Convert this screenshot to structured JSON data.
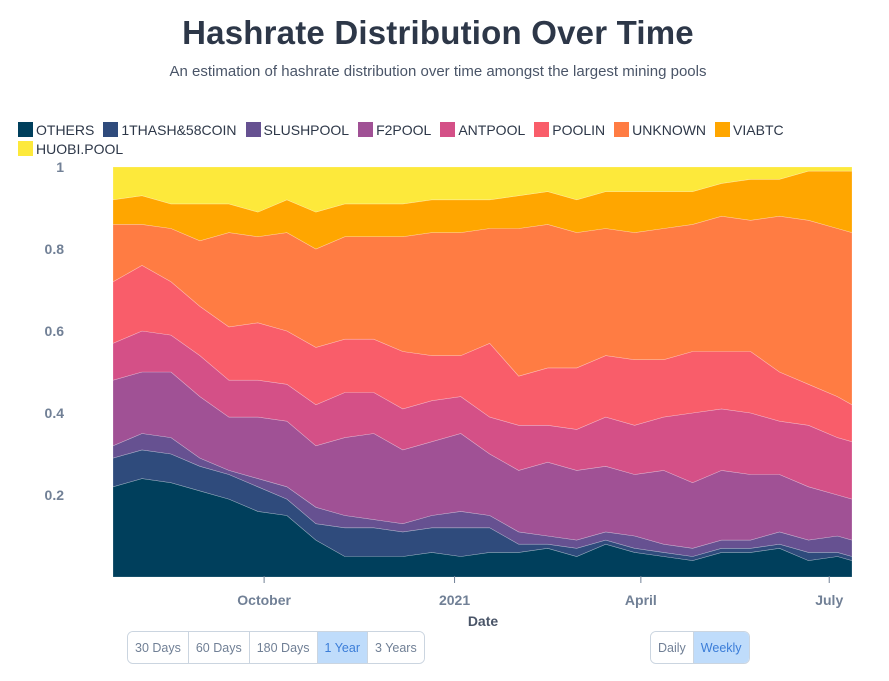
{
  "title": "Hashrate Distribution Over Time",
  "subtitle": "An estimation of hashrate distribution over time amongst the largest mining pools",
  "range_buttons": [
    {
      "label": "30 Days",
      "active": false
    },
    {
      "label": "60 Days",
      "active": false
    },
    {
      "label": "180 Days",
      "active": false
    },
    {
      "label": "1 Year",
      "active": true
    },
    {
      "label": "3 Years",
      "active": false
    }
  ],
  "interval_buttons": [
    {
      "label": "Daily",
      "active": false
    },
    {
      "label": "Weekly",
      "active": true
    }
  ],
  "chart_data": {
    "type": "area",
    "stacked": true,
    "title": "Hashrate Distribution Over Time",
    "subtitle": "An estimation of hashrate distribution over time amongst the largest mining pools",
    "xlabel": "Date",
    "ylabel": "",
    "ylim": [
      0,
      1
    ],
    "xlim": [
      "2020-07-20",
      "2021-07-12"
    ],
    "y_ticks": [
      "0.2",
      "0.4",
      "0.6",
      "0.8",
      "1"
    ],
    "x_ticks": [
      {
        "label": "October",
        "date": "2020-10-01"
      },
      {
        "label": "2021",
        "date": "2021-01-01"
      },
      {
        "label": "April",
        "date": "2021-04-01"
      },
      {
        "label": "July",
        "date": "2021-07-01"
      }
    ],
    "grid": false,
    "legend_position": "top-left",
    "x": [
      "2020-07-20",
      "2020-08-03",
      "2020-08-17",
      "2020-08-31",
      "2020-09-14",
      "2020-09-28",
      "2020-10-12",
      "2020-10-26",
      "2020-11-09",
      "2020-11-23",
      "2020-12-07",
      "2020-12-21",
      "2021-01-04",
      "2021-01-18",
      "2021-02-01",
      "2021-02-15",
      "2021-03-01",
      "2021-03-15",
      "2021-03-29",
      "2021-04-12",
      "2021-04-26",
      "2021-05-10",
      "2021-05-24",
      "2021-06-07",
      "2021-06-21",
      "2021-07-05",
      "2021-07-12"
    ],
    "series": [
      {
        "name": "OTHERS",
        "color": "#003f5c",
        "values": [
          0.22,
          0.24,
          0.23,
          0.21,
          0.19,
          0.16,
          0.15,
          0.09,
          0.05,
          0.05,
          0.05,
          0.06,
          0.05,
          0.06,
          0.06,
          0.07,
          0.05,
          0.08,
          0.06,
          0.05,
          0.04,
          0.06,
          0.06,
          0.07,
          0.04,
          0.05,
          0.04
        ]
      },
      {
        "name": "1THASH&58COIN",
        "color": "#2f4b7c",
        "values": [
          0.07,
          0.07,
          0.07,
          0.06,
          0.06,
          0.06,
          0.04,
          0.04,
          0.07,
          0.07,
          0.06,
          0.06,
          0.07,
          0.06,
          0.02,
          0.01,
          0.02,
          0.01,
          0.01,
          0.01,
          0.01,
          0.01,
          0.01,
          0.01,
          0.02,
          0.01,
          0.01
        ]
      },
      {
        "name": "SLUSHPOOL",
        "color": "#665191",
        "values": [
          0.03,
          0.04,
          0.04,
          0.02,
          0.01,
          0.02,
          0.03,
          0.04,
          0.03,
          0.02,
          0.02,
          0.03,
          0.04,
          0.03,
          0.03,
          0.02,
          0.02,
          0.02,
          0.03,
          0.02,
          0.02,
          0.02,
          0.02,
          0.03,
          0.03,
          0.04,
          0.04
        ]
      },
      {
        "name": "F2POOL",
        "color": "#a05195",
        "values": [
          0.16,
          0.15,
          0.16,
          0.15,
          0.13,
          0.15,
          0.16,
          0.15,
          0.19,
          0.21,
          0.18,
          0.18,
          0.19,
          0.15,
          0.15,
          0.18,
          0.17,
          0.16,
          0.15,
          0.18,
          0.16,
          0.17,
          0.16,
          0.14,
          0.13,
          0.1,
          0.1
        ]
      },
      {
        "name": "ANTPOOL",
        "color": "#d45087",
        "values": [
          0.09,
          0.1,
          0.09,
          0.1,
          0.09,
          0.09,
          0.09,
          0.1,
          0.11,
          0.1,
          0.1,
          0.1,
          0.09,
          0.09,
          0.11,
          0.09,
          0.1,
          0.12,
          0.12,
          0.13,
          0.17,
          0.15,
          0.15,
          0.13,
          0.15,
          0.14,
          0.14
        ]
      },
      {
        "name": "POOLIN",
        "color": "#f95d6a",
        "values": [
          0.15,
          0.16,
          0.13,
          0.12,
          0.13,
          0.14,
          0.13,
          0.14,
          0.13,
          0.13,
          0.14,
          0.11,
          0.1,
          0.18,
          0.12,
          0.14,
          0.15,
          0.15,
          0.16,
          0.14,
          0.15,
          0.14,
          0.15,
          0.12,
          0.1,
          0.1,
          0.09
        ]
      },
      {
        "name": "UNKNOWN",
        "color": "#ff7c43",
        "values": [
          0.14,
          0.1,
          0.13,
          0.16,
          0.23,
          0.21,
          0.24,
          0.24,
          0.25,
          0.25,
          0.28,
          0.3,
          0.3,
          0.28,
          0.36,
          0.35,
          0.33,
          0.31,
          0.31,
          0.32,
          0.31,
          0.33,
          0.32,
          0.38,
          0.4,
          0.41,
          0.42
        ]
      },
      {
        "name": "VIABTC",
        "color": "#ffa600",
        "values": [
          0.06,
          0.07,
          0.06,
          0.09,
          0.07,
          0.06,
          0.08,
          0.09,
          0.08,
          0.08,
          0.08,
          0.08,
          0.08,
          0.07,
          0.08,
          0.08,
          0.08,
          0.09,
          0.1,
          0.09,
          0.08,
          0.08,
          0.1,
          0.09,
          0.12,
          0.14,
          0.15
        ]
      },
      {
        "name": "HUOBI.POOL",
        "color": "#fde93b",
        "values": [
          0.08,
          0.07,
          0.09,
          0.09,
          0.09,
          0.11,
          0.08,
          0.11,
          0.09,
          0.09,
          0.09,
          0.08,
          0.08,
          0.08,
          0.07,
          0.07,
          0.08,
          0.07,
          0.06,
          0.06,
          0.06,
          0.04,
          0.03,
          0.03,
          0.01,
          0.01,
          0.01
        ]
      }
    ]
  }
}
